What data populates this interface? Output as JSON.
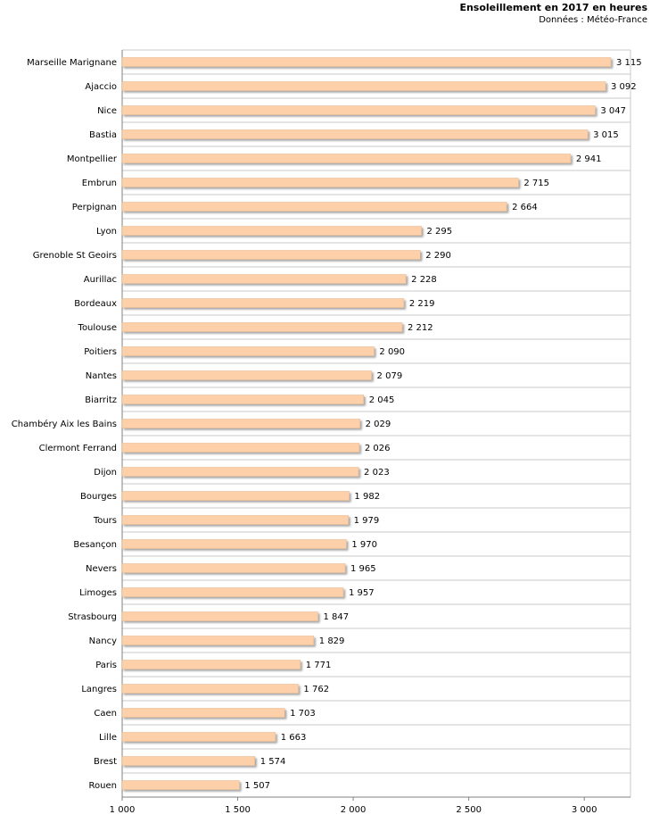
{
  "chart_data": {
    "type": "bar",
    "orientation": "horizontal",
    "title": "Ensoleillement en 2017 en heures",
    "subtitle": "Données : Météo-France",
    "xlim": [
      1000,
      3200
    ],
    "xticks": [
      "1 000",
      "1 500",
      "2 000",
      "2 500",
      "3 000"
    ],
    "xtick_values": [
      1000,
      1500,
      2000,
      2500,
      3000
    ],
    "grid": true,
    "bar_color": "#fdd0a9",
    "categories": [
      "Marseille Marignane",
      "Ajaccio",
      "Nice",
      "Bastia",
      "Montpellier",
      "Embrun",
      "Perpignan",
      "Lyon",
      "Grenoble St Geoirs",
      "Aurillac",
      "Bordeaux",
      "Toulouse",
      "Poitiers",
      "Nantes",
      "Biarritz",
      "Chambéry Aix les Bains",
      "Clermont Ferrand",
      "Dijon",
      "Bourges",
      "Tours",
      "Besançon",
      "Nevers",
      "Limoges",
      "Strasbourg",
      "Nancy",
      "Paris",
      "Langres",
      "Caen",
      "Lille",
      "Brest",
      "Rouen"
    ],
    "values": [
      3115,
      3092,
      3047,
      3015,
      2941,
      2715,
      2664,
      2295,
      2290,
      2228,
      2219,
      2212,
      2090,
      2079,
      2045,
      2029,
      2026,
      2023,
      1982,
      1979,
      1970,
      1965,
      1957,
      1847,
      1829,
      1771,
      1762,
      1703,
      1663,
      1574,
      1507
    ],
    "value_labels": [
      "3 115",
      "3 092",
      "3 047",
      "3 015",
      "2 941",
      "2 715",
      "2 664",
      "2 295",
      "2 290",
      "2 228",
      "2 219",
      "2 212",
      "2 090",
      "2 079",
      "2 045",
      "2 029",
      "2 026",
      "2 023",
      "1 982",
      "1 979",
      "1 970",
      "1 965",
      "1 957",
      "1 847",
      "1 829",
      "1 771",
      "1 762",
      "1 703",
      "1 663",
      "1 574",
      "1 507"
    ]
  }
}
